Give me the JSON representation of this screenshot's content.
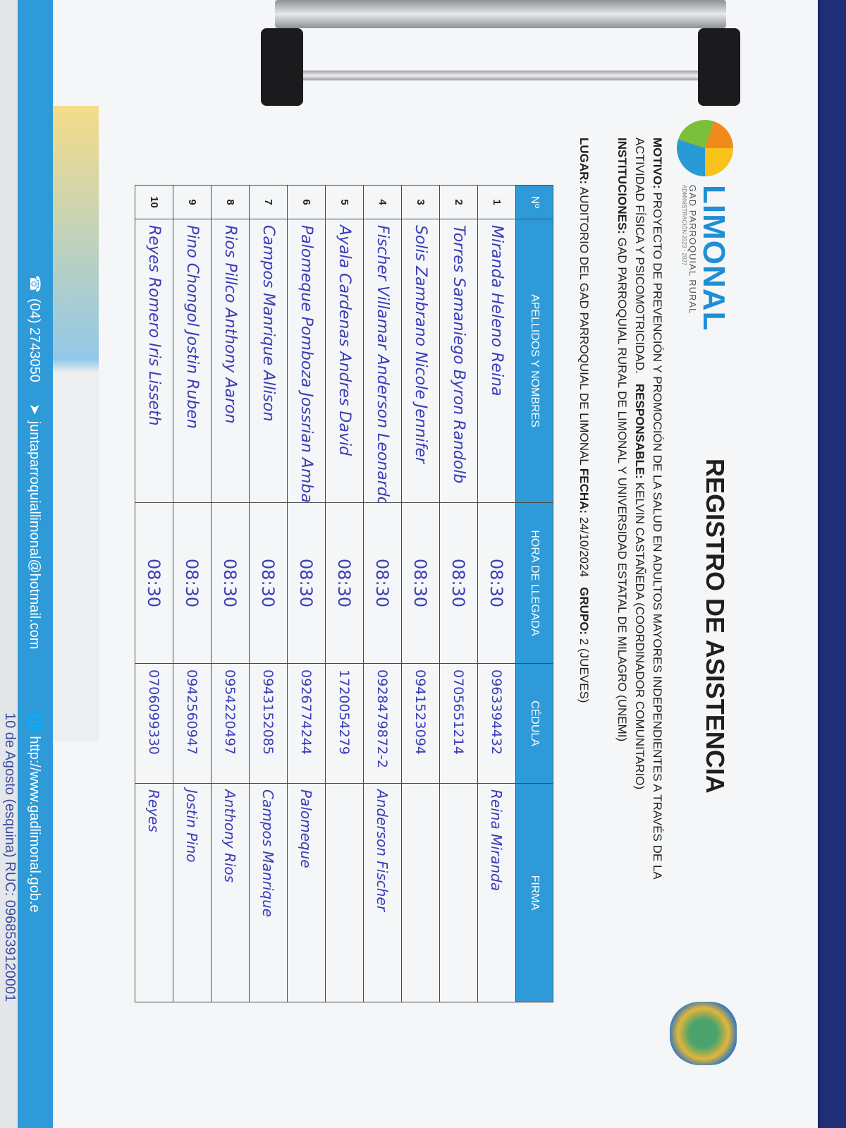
{
  "logo": {
    "name": "LIMONAL",
    "subtitle": "GAD PARROQUIAL RURAL",
    "admin": "ADMINISTRACIÓN 2023 - 2027"
  },
  "title": "REGISTRO DE ASISTENCIA",
  "info": {
    "motivo_label": "MOTIVO:",
    "motivo_line1": "PROYECTO DE PREVENCIÓN Y PROMOCIÓN DE LA SALUD EN ADULTOS MAYORES INDEPENDIENTES A TRAVÉS DE LA",
    "motivo_line2": "ACTIVIDAD FÍSICA Y PSICOMOTRICIDAD.",
    "responsable_label": "RESPONSABLE:",
    "responsable": "KELVIN CASTAÑEDA (COORDINADOR COMUNITARIO)",
    "instituciones_label": "INSTITUCIONES:",
    "instituciones": "GAD PARROQUIAL RURAL DE LIMONAL Y UNIVERSIDAD ESTATAL DE MILAGRO (UNEMI)",
    "lugar_label": "LUGAR:",
    "lugar": "AUDITORIO DEL GAD PARROQUIAL DE LIMONAL",
    "fecha_label": "FECHA:",
    "fecha": "24/10/2024",
    "grupo_label": "GRUPO:",
    "grupo": "2 (JUEVES)"
  },
  "table": {
    "headers": [
      "Nº",
      "APELLIDOS Y NOMBRES",
      "HORA DE LLEGADA",
      "CÉDULA",
      "FIRMA"
    ],
    "rows": [
      {
        "n": "1",
        "name": "Miranda Heleno Reina",
        "time": "08:30",
        "id": "0963394432",
        "sig": "Reina Miranda"
      },
      {
        "n": "2",
        "name": "Torres Samaniego Byron Randolb",
        "time": "08:30",
        "id": "0705651214",
        "sig": ""
      },
      {
        "n": "3",
        "name": "Solis Zambrano Nicole Jennifer",
        "time": "08:30",
        "id": "0941523094",
        "sig": ""
      },
      {
        "n": "4",
        "name": "Fischer Villamar Anderson Leonardo",
        "time": "08:30",
        "id": "0928479872-2",
        "sig": "Anderson Fischer"
      },
      {
        "n": "5",
        "name": "Ayala Cardenas Andres David",
        "time": "08:30",
        "id": "1720054279",
        "sig": ""
      },
      {
        "n": "6",
        "name": "Palomeque Pomboza Jossrian Ambar",
        "time": "08:30",
        "id": "0926774244",
        "sig": "Palomeque"
      },
      {
        "n": "7",
        "name": "Campos Manrique Allison",
        "time": "08:30",
        "id": "0943152085",
        "sig": "Campos Manrique"
      },
      {
        "n": "8",
        "name": "Rios Pillco Anthony Aaron",
        "time": "08:30",
        "id": "0954220497",
        "sig": "Anthony Rios"
      },
      {
        "n": "9",
        "name": "Pino Chongol Jostin Ruben",
        "time": "08:30",
        "id": "0942560947",
        "sig": "Jostin Pino"
      },
      {
        "n": "10",
        "name": "Reyes Romero Iris Lisseth",
        "time": "08:30",
        "id": "0706099330",
        "sig": "Reyes"
      }
    ]
  },
  "footer": {
    "phone": "(04) 2743050",
    "email": "juntaparroquiallimonal@hotmail.com",
    "web": "http://www.gadlimonal.gob.e",
    "address": "10 de Agosto (esquina) RUC: 0968539120001",
    "phone_icon": "phone-icon",
    "email_icon": "paper-plane-icon",
    "web_icon": "globe-icon"
  },
  "colors": {
    "accent": "#2f9ad8",
    "ink": "#3b3cb8",
    "cover": "#1f2f7a"
  }
}
